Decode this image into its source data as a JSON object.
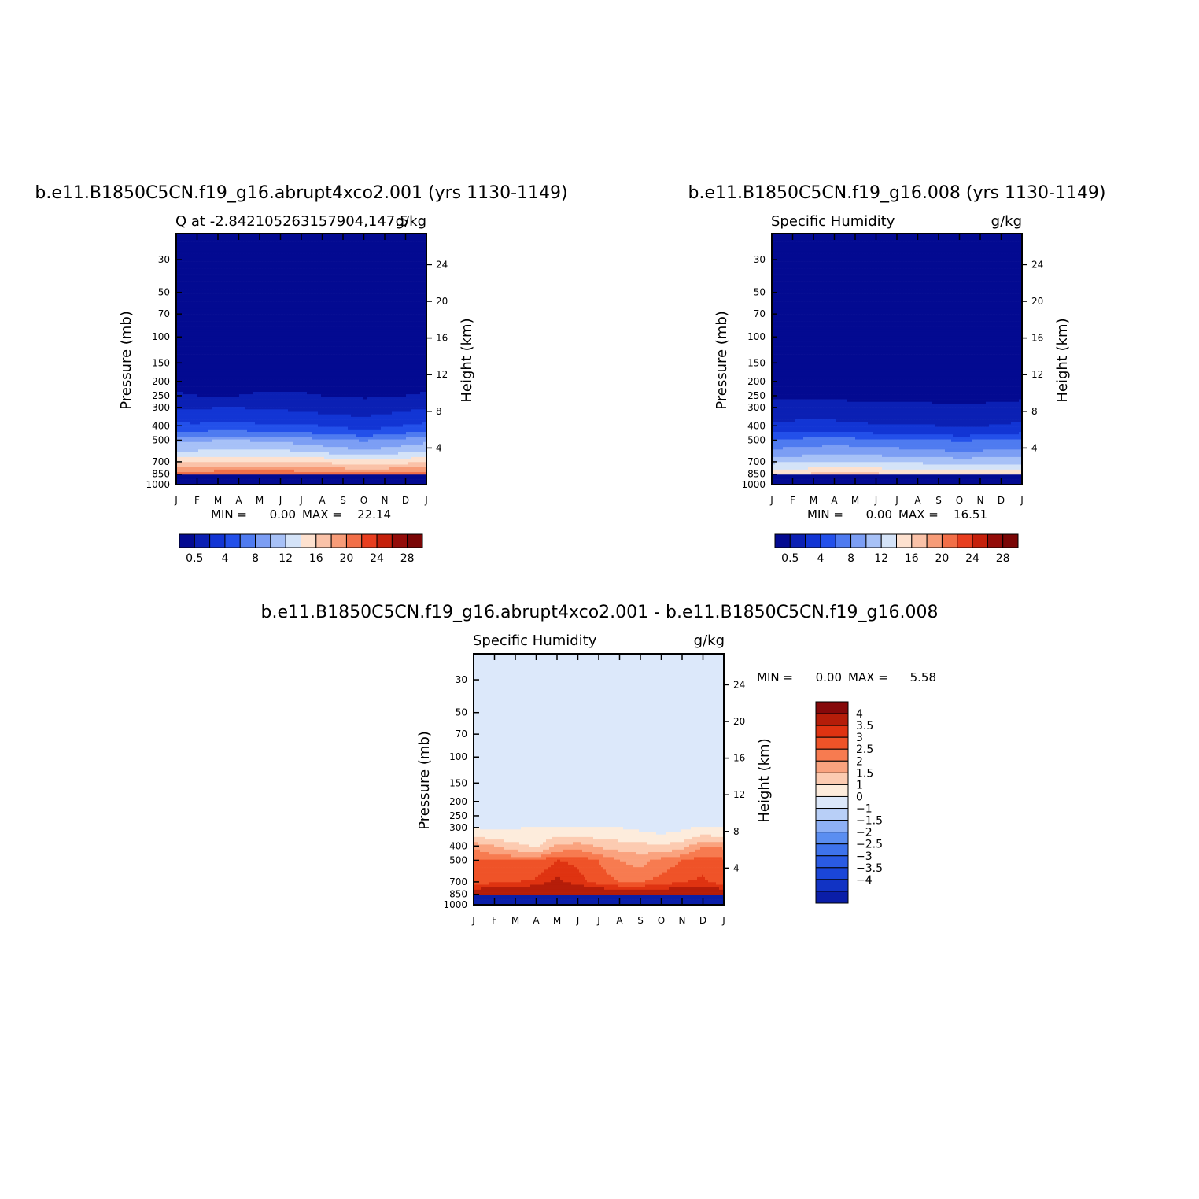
{
  "chart_data": [
    {
      "type": "heatmap",
      "title": "b.e11.B1850C5CN.f19_g16.abrupt4xco2.001 (yrs 1130-1149)",
      "subtitle_left": "Q at -2.842105263157904,147.5",
      "subtitle_right": "g/kg",
      "ylabel": "Pressure (mb)",
      "ylabel_right": "Height (km)",
      "x_ticks": [
        "J",
        "F",
        "M",
        "A",
        "M",
        "J",
        "J",
        "A",
        "S",
        "O",
        "N",
        "D",
        "J"
      ],
      "y_ticks": [
        30,
        50,
        70,
        100,
        150,
        200,
        250,
        300,
        400,
        500,
        700,
        850,
        1000
      ],
      "y2_ticks": [
        24,
        20,
        16,
        12,
        8,
        4
      ],
      "ylim": [
        20,
        1000
      ],
      "y_scale": "log",
      "stats": {
        "min_label": "MIN =",
        "min": "0.00",
        "max_label": "MAX =",
        "max": "22.14"
      },
      "colorbar": {
        "orientation": "horizontal",
        "levels": [
          0.5,
          2,
          4,
          6,
          8,
          10,
          12,
          14,
          16,
          18,
          20,
          22,
          24,
          26,
          28
        ],
        "labels": [
          "0.5",
          "4",
          "8",
          "12",
          "16",
          "20",
          "24",
          "28"
        ]
      },
      "profiles": [
        [
          0.1,
          0.1,
          0.1,
          0.1,
          0.1,
          0.1,
          0.1,
          0.1,
          0.1,
          0.1,
          0.1,
          0.1,
          0.1
        ],
        [
          0.3,
          0.3,
          0.3,
          0.3,
          0.3,
          0.3,
          0.3,
          0.3,
          0.3,
          0.3,
          0.3,
          0.3,
          0.3
        ],
        [
          0.6,
          0.5,
          0.5,
          0.5,
          0.6,
          0.6,
          0.6,
          0.5,
          0.5,
          0.4,
          0.4,
          0.5,
          0.6
        ],
        [
          1.9,
          1.8,
          2.0,
          2.0,
          1.8,
          1.8,
          1.6,
          1.5,
          1.4,
          1.3,
          1.5,
          1.7,
          1.9
        ],
        [
          4.8,
          4.6,
          5.0,
          4.9,
          4.6,
          4.5,
          4.2,
          4.0,
          3.6,
          3.3,
          3.6,
          4.1,
          4.8
        ],
        [
          9.5,
          9.6,
          10.0,
          10.0,
          9.8,
          9.6,
          9.2,
          8.8,
          8.2,
          7.8,
          8.2,
          9.0,
          9.5
        ],
        [
          15.5,
          15.7,
          16.0,
          16.2,
          16.4,
          16.3,
          16.0,
          15.6,
          15.2,
          14.8,
          15.1,
          15.4,
          15.5
        ],
        [
          21.5,
          21.7,
          22.0,
          22.1,
          22.1,
          22.0,
          21.8,
          21.5,
          21.3,
          21.2,
          21.3,
          21.4,
          21.5
        ]
      ]
    },
    {
      "type": "heatmap",
      "title": "b.e11.B1850C5CN.f19_g16.008 (yrs 1130-1149)",
      "subtitle_left": "Specific Humidity",
      "subtitle_right": "g/kg",
      "ylabel": "Pressure (mb)",
      "ylabel_right": "Height (km)",
      "x_ticks": [
        "J",
        "F",
        "M",
        "A",
        "M",
        "J",
        "J",
        "A",
        "S",
        "O",
        "N",
        "D",
        "J"
      ],
      "y_ticks": [
        30,
        50,
        70,
        100,
        150,
        200,
        250,
        300,
        400,
        500,
        700,
        850,
        1000
      ],
      "y2_ticks": [
        24,
        20,
        16,
        12,
        8,
        4
      ],
      "ylim": [
        20,
        1000
      ],
      "y_scale": "log",
      "stats": {
        "min_label": "MIN =",
        "min": "0.00",
        "max_label": "MAX =",
        "max": "16.51"
      },
      "colorbar": {
        "orientation": "horizontal",
        "levels": [
          0.5,
          2,
          4,
          6,
          8,
          10,
          12,
          14,
          16,
          18,
          20,
          22,
          24,
          26,
          28
        ],
        "labels": [
          "0.5",
          "4",
          "8",
          "12",
          "16",
          "20",
          "24",
          "28"
        ]
      },
      "profiles": [
        [
          0.1,
          0.1,
          0.1,
          0.1,
          0.1,
          0.1,
          0.1,
          0.1,
          0.1,
          0.1,
          0.1,
          0.1,
          0.1
        ],
        [
          0.2,
          0.2,
          0.2,
          0.2,
          0.2,
          0.2,
          0.2,
          0.2,
          0.2,
          0.2,
          0.2,
          0.2,
          0.2
        ],
        [
          0.35,
          0.35,
          0.35,
          0.35,
          0.35,
          0.35,
          0.35,
          0.35,
          0.35,
          0.35,
          0.35,
          0.35,
          0.35
        ],
        [
          0.9,
          1.0,
          1.1,
          1.0,
          0.8,
          0.7,
          0.7,
          0.7,
          0.6,
          0.6,
          0.6,
          0.7,
          0.9
        ],
        [
          2.6,
          2.7,
          2.9,
          2.8,
          2.5,
          2.4,
          2.3,
          2.2,
          2.0,
          1.8,
          1.9,
          2.2,
          2.6
        ],
        [
          6.5,
          6.7,
          7.0,
          7.2,
          7.0,
          6.8,
          6.6,
          6.4,
          6.1,
          5.8,
          6.0,
          6.3,
          6.5
        ],
        [
          11.5,
          11.8,
          12.0,
          12.3,
          12.2,
          12.0,
          11.8,
          11.6,
          11.4,
          11.2,
          11.3,
          11.4,
          11.5
        ],
        [
          16.2,
          16.3,
          16.4,
          16.5,
          16.5,
          16.4,
          16.3,
          16.2,
          16.1,
          16.0,
          16.1,
          16.1,
          16.2
        ]
      ]
    },
    {
      "type": "heatmap",
      "title": "b.e11.B1850C5CN.f19_g16.abrupt4xco2.001 - b.e11.B1850C5CN.f19_g16.008",
      "subtitle_left": "Specific Humidity",
      "subtitle_right": "g/kg",
      "ylabel": "Pressure (mb)",
      "ylabel_right": "Height (km)",
      "x_ticks": [
        "J",
        "F",
        "M",
        "A",
        "M",
        "J",
        "J",
        "A",
        "S",
        "O",
        "N",
        "D",
        "J"
      ],
      "y_ticks": [
        30,
        50,
        70,
        100,
        150,
        200,
        250,
        300,
        400,
        500,
        700,
        850,
        1000
      ],
      "y2_ticks": [
        24,
        20,
        16,
        12,
        8,
        4
      ],
      "ylim": [
        20,
        1000
      ],
      "y_scale": "log",
      "stats": {
        "min_label": "MIN =",
        "min": "0.00",
        "max_label": "MAX =",
        "max": "5.58"
      },
      "colorbar": {
        "orientation": "vertical",
        "levels": [
          -4,
          -3.5,
          -3,
          -2.5,
          -2,
          -1.5,
          -1,
          0,
          1,
          1.5,
          2,
          2.5,
          3,
          3.5,
          4
        ],
        "labels": [
          "4",
          "3.5",
          "3",
          "2.5",
          "2",
          "1.5",
          "1",
          "0",
          "−1",
          "−1.5",
          "−2",
          "−2.5",
          "−3",
          "−3.5",
          "−4"
        ]
      },
      "profiles": [
        [
          0.05,
          0.05,
          0.05,
          0.05,
          0.05,
          0.05,
          0.05,
          0.05,
          0.05,
          0.05,
          0.05,
          0.05,
          0.05
        ],
        [
          0.1,
          0.1,
          0.1,
          0.1,
          0.1,
          0.1,
          0.1,
          0.1,
          0.1,
          0.1,
          0.1,
          0.1,
          0.1
        ],
        [
          0.3,
          0.3,
          0.3,
          0.3,
          0.3,
          0.3,
          0.3,
          0.3,
          0.3,
          0.3,
          0.3,
          0.3,
          0.3
        ],
        [
          1.0,
          0.9,
          0.95,
          1.1,
          1.1,
          1.1,
          1.05,
          1.0,
          0.9,
          0.8,
          0.9,
          1.1,
          1.0
        ],
        [
          2.4,
          2.0,
          1.7,
          1.4,
          2.1,
          2.3,
          1.9,
          1.8,
          1.7,
          1.6,
          1.8,
          2.5,
          2.4
        ],
        [
          3.1,
          3.0,
          3.0,
          3.1,
          3.5,
          3.4,
          3.0,
          2.5,
          2.3,
          2.7,
          3.0,
          3.3,
          3.1
        ],
        [
          3.2,
          3.4,
          3.5,
          3.6,
          4.2,
          3.7,
          3.3,
          3.0,
          3.0,
          3.2,
          3.5,
          3.6,
          3.2
        ],
        [
          4.8,
          5.0,
          5.1,
          5.2,
          5.4,
          5.2,
          5.0,
          4.9,
          4.8,
          4.8,
          4.9,
          5.0,
          4.8
        ]
      ]
    }
  ]
}
